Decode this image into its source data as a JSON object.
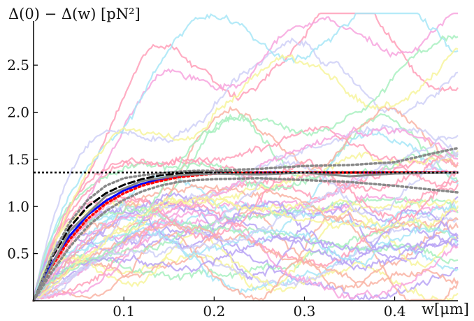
{
  "chart_data": {
    "type": "line",
    "title": "",
    "ylabel": "Δ(0) − Δ(w) [pN²]",
    "xlabel": "w[μm]",
    "xlim": [
      0,
      0.47
    ],
    "ylim": [
      0,
      2.85
    ],
    "x_ticks": [
      {
        "value": 0.1,
        "label": "0.1"
      },
      {
        "value": 0.2,
        "label": "0.2"
      },
      {
        "value": 0.3,
        "label": "0.3"
      },
      {
        "value": 0.4,
        "label": "0.4"
      }
    ],
    "y_ticks": [
      {
        "value": 0.5,
        "label": "0.5"
      },
      {
        "value": 1.0,
        "label": "1.0"
      },
      {
        "value": 1.5,
        "label": "1.5"
      },
      {
        "value": 2.0,
        "label": "2.0"
      },
      {
        "value": 2.5,
        "label": "2.5"
      }
    ],
    "grid": false,
    "legend": "none",
    "asymptote": {
      "y": 1.36,
      "style": "dotted",
      "color": "#000000"
    },
    "background_traces": {
      "count": 44,
      "colors": [
        "#ff9fb8",
        "#b9a3f5",
        "#a8f0c0",
        "#f7f59c",
        "#a7e6f7",
        "#f7a4de",
        "#f9b3a3",
        "#cfd0f7"
      ],
      "note_style": "noisy sample curves"
    },
    "series": [
      {
        "style": "dashed",
        "color": "#000000",
        "x": [
          0,
          0.02,
          0.04,
          0.06,
          0.08,
          0.1,
          0.12,
          0.14,
          0.16,
          0.18,
          0.2,
          0.25,
          0.3,
          0.35,
          0.4,
          0.47
        ],
        "y": [
          0,
          0.45,
          0.78,
          1.0,
          1.14,
          1.23,
          1.29,
          1.33,
          1.35,
          1.36,
          1.36,
          1.36,
          1.36,
          1.36,
          1.36,
          1.36
        ]
      },
      {
        "style": "solid",
        "color": "#0000ff",
        "x": [
          0,
          0.02,
          0.04,
          0.06,
          0.08,
          0.1,
          0.12,
          0.14,
          0.16,
          0.18,
          0.2,
          0.25,
          0.3,
          0.35,
          0.4,
          0.47
        ],
        "y": [
          0,
          0.39,
          0.69,
          0.91,
          1.06,
          1.17,
          1.24,
          1.29,
          1.32,
          1.34,
          1.35,
          1.36,
          1.36,
          1.36,
          1.36,
          1.36
        ]
      },
      {
        "style": "dotted",
        "color": "#ff0000",
        "x": [
          0,
          0.02,
          0.04,
          0.06,
          0.08,
          0.1,
          0.12,
          0.14,
          0.16,
          0.18,
          0.2,
          0.25,
          0.3,
          0.35,
          0.4,
          0.47
        ],
        "y": [
          0,
          0.36,
          0.65,
          0.87,
          1.03,
          1.14,
          1.22,
          1.27,
          1.31,
          1.33,
          1.35,
          1.36,
          1.36,
          1.36,
          1.36,
          1.36
        ]
      },
      {
        "style": "dotted",
        "color": "#888888",
        "x": [
          0,
          0.02,
          0.04,
          0.06,
          0.08,
          0.1,
          0.12,
          0.14,
          0.16,
          0.18,
          0.2,
          0.25,
          0.3,
          0.35,
          0.4,
          0.45,
          0.47
        ],
        "y": [
          0,
          0.47,
          0.83,
          1.07,
          1.22,
          1.3,
          1.33,
          1.35,
          1.37,
          1.38,
          1.38,
          1.4,
          1.43,
          1.44,
          1.47,
          1.58,
          1.62
        ]
      },
      {
        "style": "dotted",
        "color": "#888888",
        "x": [
          0,
          0.02,
          0.04,
          0.06,
          0.08,
          0.1,
          0.12,
          0.14,
          0.16,
          0.18,
          0.2,
          0.25,
          0.3,
          0.35,
          0.4,
          0.45,
          0.47
        ],
        "y": [
          0,
          0.3,
          0.57,
          0.79,
          0.95,
          1.07,
          1.16,
          1.22,
          1.26,
          1.28,
          1.29,
          1.3,
          1.28,
          1.26,
          1.22,
          1.17,
          1.15
        ]
      },
      {
        "style": "solid",
        "color": "#888888",
        "x": [
          0,
          0.04,
          0.08,
          0.12,
          0.16,
          0.2,
          0.25,
          0.3,
          0.35,
          0.4,
          0.47
        ],
        "y": [
          0,
          0.74,
          1.11,
          1.27,
          1.33,
          1.35,
          1.34,
          1.36,
          1.32,
          1.35,
          1.36
        ]
      }
    ]
  }
}
